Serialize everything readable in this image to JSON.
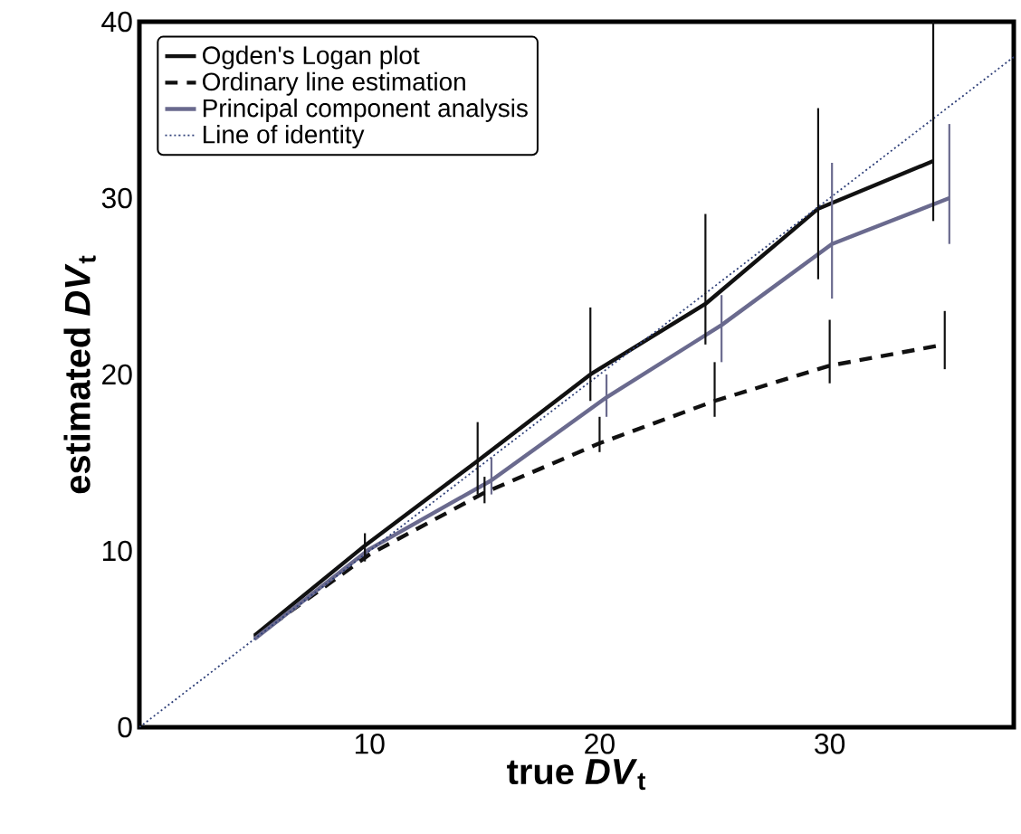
{
  "chart_data": {
    "type": "line",
    "xlabel": "**true *DV*$_{t}$**",
    "ylabel": "**estimated *DV*$_{t}$**",
    "xlim": [
      0,
      38
    ],
    "ylim": [
      0,
      40
    ],
    "xticks": [
      10,
      20,
      30
    ],
    "yticks": [
      0,
      10,
      20,
      30,
      40
    ],
    "grid": false,
    "legend": "top left",
    "marker": "none",
    "series": [
      {
        "name": "Ogden's Logan plot",
        "color": "#111111",
        "line_style": "solid",
        "x": [
          5,
          9.8,
          14.7,
          19.6,
          24.6,
          29.5,
          34.5
        ],
        "values": [
          5.2,
          10.3,
          15.1,
          20.0,
          24.0,
          29.4,
          32.1
        ],
        "errors": [
          null,
          [
            9.4,
            11.0
          ],
          [
            13.2,
            17.3
          ],
          [
            18.5,
            23.8
          ],
          [
            21.7,
            29.1
          ],
          [
            25.4,
            35.1
          ],
          [
            28.7,
            40
          ]
        ]
      },
      {
        "name": "Ordinary line estimation",
        "color": "#111111",
        "line_style": "dashed",
        "x": [
          5,
          10,
          15,
          20,
          25,
          30,
          35
        ],
        "values": [
          5.1,
          9.8,
          13.3,
          16.1,
          18.5,
          20.5,
          21.7
        ],
        "errors": [
          null,
          null,
          [
            12.7,
            14.2
          ],
          [
            15.6,
            17.6
          ],
          [
            17.6,
            20.7
          ],
          [
            19.5,
            23.1
          ],
          [
            20.3,
            23.6
          ]
        ]
      },
      {
        "name": "Principal component analysis",
        "color": "#6a6a8e",
        "line_style": "solid",
        "x": [
          5,
          10,
          15.3,
          20.3,
          25.3,
          30.1,
          35.2
        ],
        "values": [
          5.0,
          10.1,
          14.0,
          18.7,
          22.8,
          27.4,
          30.0
        ],
        "errors": [
          null,
          null,
          [
            13.2,
            15.3
          ],
          [
            17.6,
            20.0
          ],
          [
            20.7,
            24.5
          ],
          [
            24.3,
            32.0
          ],
          [
            27.4,
            34.2
          ]
        ]
      },
      {
        "name": "Line of identity",
        "color": "#2e3f78",
        "line_style": "dotted",
        "x": [
          0,
          38
        ],
        "values": [
          0,
          38
        ]
      }
    ]
  }
}
